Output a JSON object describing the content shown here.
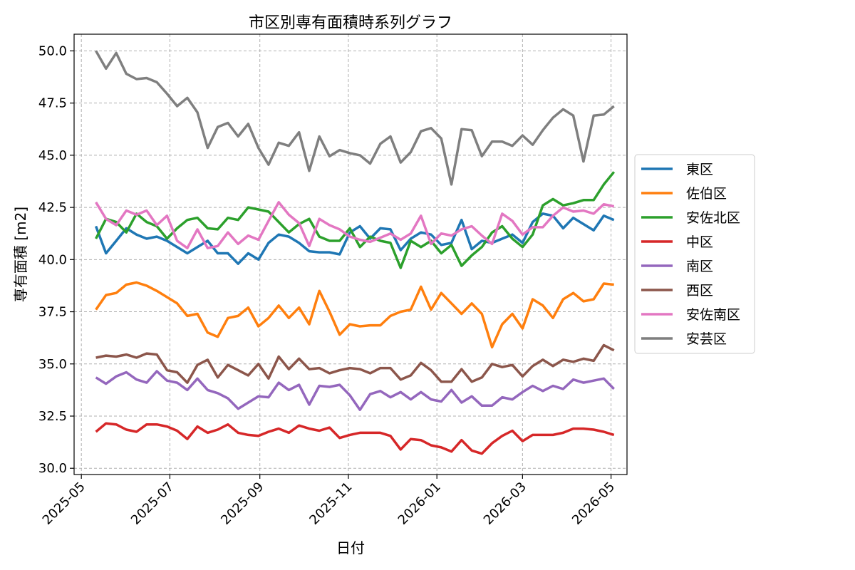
{
  "chart_data": {
    "type": "line",
    "title": "市区別専有面積時系列グラフ",
    "xlabel": "日付",
    "ylabel": "専有面積 [m2]",
    "ylim": [
      29.7,
      50.8
    ],
    "xlim": [
      "2025-04-26",
      "2026-05-12"
    ],
    "yticks": [
      30.0,
      32.5,
      35.0,
      37.5,
      40.0,
      42.5,
      45.0,
      47.5,
      50.0
    ],
    "ytick_labels": [
      "30.0",
      "32.5",
      "35.0",
      "37.5",
      "40.0",
      "42.5",
      "45.0",
      "47.5",
      "50.0"
    ],
    "xticks": [
      "2025-05-01",
      "2025-07-01",
      "2025-09-01",
      "2025-11-01",
      "2026-01-01",
      "2026-03-01",
      "2026-05-01"
    ],
    "xtick_labels": [
      "2025-05",
      "2025-07",
      "2025-09",
      "2025-11",
      "2026-01",
      "2026-03",
      "2026-05"
    ],
    "grid": true,
    "legend_position": "right-outside",
    "x": [
      "2025-05-11",
      "2025-05-18",
      "2025-05-25",
      "2025-06-01",
      "2025-06-08",
      "2025-06-15",
      "2025-06-22",
      "2025-06-29",
      "2025-07-06",
      "2025-07-13",
      "2025-07-20",
      "2025-07-27",
      "2025-08-03",
      "2025-08-10",
      "2025-08-17",
      "2025-08-24",
      "2025-08-31",
      "2025-09-07",
      "2025-09-14",
      "2025-09-21",
      "2025-09-28",
      "2025-10-05",
      "2025-10-12",
      "2025-10-19",
      "2025-10-26",
      "2025-11-02",
      "2025-11-09",
      "2025-11-16",
      "2025-11-23",
      "2025-11-30",
      "2025-12-07",
      "2025-12-14",
      "2025-12-21",
      "2025-12-28",
      "2026-01-04",
      "2026-01-11",
      "2026-01-18",
      "2026-01-25",
      "2026-02-01",
      "2026-02-08",
      "2026-02-15",
      "2026-02-22",
      "2026-03-01",
      "2026-03-08",
      "2026-03-15",
      "2026-03-22",
      "2026-03-29",
      "2026-04-05",
      "2026-04-12",
      "2026-04-19",
      "2026-04-26",
      "2026-05-03"
    ],
    "series": [
      {
        "name": "東区",
        "color": "#1f77b4",
        "values": [
          41.6,
          40.3,
          40.9,
          41.5,
          41.2,
          41.0,
          41.1,
          40.9,
          40.6,
          40.3,
          40.6,
          40.9,
          40.3,
          40.3,
          39.8,
          40.3,
          40.0,
          40.8,
          41.2,
          41.1,
          40.8,
          40.4,
          40.35,
          40.35,
          40.25,
          41.3,
          41.6,
          41.0,
          41.5,
          41.45,
          40.45,
          41.0,
          41.3,
          41.2,
          40.7,
          40.8,
          41.9,
          40.5,
          40.9,
          40.8,
          41.0,
          41.2,
          40.8,
          41.8,
          42.2,
          42.1,
          41.5,
          42.0,
          41.7,
          41.4,
          42.1,
          41.9
        ]
      },
      {
        "name": "佐伯区",
        "color": "#ff7f0e",
        "values": [
          37.6,
          38.3,
          38.4,
          38.8,
          38.9,
          38.75,
          38.5,
          38.2,
          37.9,
          37.3,
          37.4,
          36.5,
          36.3,
          37.2,
          37.3,
          37.7,
          36.8,
          37.2,
          37.8,
          37.2,
          37.7,
          36.9,
          38.5,
          37.5,
          36.4,
          36.9,
          36.8,
          36.85,
          36.85,
          37.3,
          37.5,
          37.6,
          38.7,
          37.6,
          38.4,
          37.9,
          37.4,
          37.9,
          37.4,
          35.8,
          36.9,
          37.4,
          36.7,
          38.1,
          37.8,
          37.2,
          38.1,
          38.4,
          38.0,
          38.1,
          38.85,
          38.8
        ]
      },
      {
        "name": "安佐北区",
        "color": "#2ca02c",
        "values": [
          41.0,
          41.95,
          41.8,
          41.3,
          42.2,
          41.8,
          41.6,
          41.0,
          41.5,
          41.9,
          42.0,
          41.5,
          41.45,
          42.0,
          41.9,
          42.5,
          42.4,
          42.3,
          41.8,
          41.3,
          41.7,
          41.95,
          41.1,
          40.9,
          40.9,
          41.5,
          40.6,
          41.1,
          40.9,
          40.8,
          39.6,
          40.9,
          40.6,
          40.9,
          40.3,
          40.7,
          39.7,
          40.2,
          40.6,
          41.3,
          41.6,
          41.0,
          40.6,
          41.2,
          42.6,
          42.9,
          42.6,
          42.7,
          42.85,
          42.85,
          43.6,
          44.2
        ]
      },
      {
        "name": "中区",
        "color": "#d62728",
        "values": [
          31.75,
          32.15,
          32.1,
          31.85,
          31.75,
          32.1,
          32.1,
          32.0,
          31.8,
          31.4,
          32.0,
          31.7,
          31.85,
          32.1,
          31.7,
          31.6,
          31.55,
          31.75,
          31.9,
          31.7,
          32.05,
          31.9,
          31.8,
          31.95,
          31.45,
          31.6,
          31.7,
          31.7,
          31.7,
          31.55,
          30.9,
          31.4,
          31.35,
          31.1,
          31.0,
          30.8,
          31.35,
          30.85,
          30.7,
          31.2,
          31.55,
          31.8,
          31.3,
          31.6,
          31.6,
          31.6,
          31.7,
          31.9,
          31.9,
          31.85,
          31.75,
          31.6
        ]
      },
      {
        "name": "南区",
        "color": "#9467bd",
        "values": [
          34.35,
          34.05,
          34.4,
          34.6,
          34.25,
          34.1,
          34.65,
          34.2,
          34.1,
          33.75,
          34.3,
          33.75,
          33.6,
          33.35,
          32.85,
          33.15,
          33.45,
          33.4,
          34.1,
          33.75,
          34.0,
          33.05,
          33.95,
          33.9,
          34.0,
          33.5,
          32.8,
          33.55,
          33.7,
          33.4,
          33.65,
          33.3,
          33.65,
          33.3,
          33.2,
          33.75,
          33.15,
          33.45,
          33.0,
          33.0,
          33.4,
          33.3,
          33.65,
          33.95,
          33.7,
          33.95,
          33.8,
          34.25,
          34.1,
          34.2,
          34.3,
          33.8
        ]
      },
      {
        "name": "西区",
        "color": "#8c564b",
        "values": [
          35.3,
          35.4,
          35.35,
          35.45,
          35.3,
          35.5,
          35.45,
          34.7,
          34.6,
          34.1,
          34.95,
          35.2,
          34.35,
          34.95,
          34.7,
          34.45,
          35.0,
          34.3,
          35.35,
          34.75,
          35.25,
          34.75,
          34.8,
          34.55,
          34.7,
          34.8,
          34.75,
          34.55,
          34.8,
          34.8,
          34.25,
          34.45,
          35.05,
          34.7,
          34.15,
          34.15,
          34.75,
          34.15,
          34.35,
          35.0,
          34.85,
          34.95,
          34.4,
          34.9,
          35.2,
          34.9,
          35.2,
          35.1,
          35.25,
          35.15,
          35.9,
          35.65
        ]
      },
      {
        "name": "安佐南区",
        "color": "#e377c2",
        "values": [
          42.75,
          41.95,
          41.65,
          42.35,
          42.15,
          42.35,
          41.65,
          42.1,
          40.9,
          40.55,
          41.45,
          40.55,
          40.65,
          41.3,
          40.75,
          41.15,
          40.95,
          41.85,
          42.75,
          42.15,
          41.75,
          40.65,
          41.95,
          41.65,
          41.45,
          41.1,
          40.95,
          40.85,
          41.05,
          41.25,
          40.95,
          41.25,
          42.1,
          40.75,
          41.25,
          41.15,
          41.45,
          41.6,
          41.15,
          40.75,
          42.2,
          41.85,
          41.2,
          41.55,
          41.55,
          42.1,
          42.5,
          42.3,
          42.35,
          42.2,
          42.65,
          42.55
        ]
      },
      {
        "name": "安芸区",
        "color": "#7f7f7f",
        "values": [
          50.0,
          49.15,
          49.9,
          48.9,
          48.65,
          48.7,
          48.5,
          47.95,
          47.35,
          47.75,
          47.05,
          45.35,
          46.35,
          46.55,
          45.9,
          46.5,
          45.35,
          44.55,
          45.6,
          45.45,
          46.1,
          44.25,
          45.9,
          44.95,
          45.25,
          45.1,
          45.0,
          44.6,
          45.55,
          45.9,
          44.65,
          45.15,
          46.15,
          46.3,
          45.8,
          43.6,
          46.25,
          46.2,
          44.95,
          45.65,
          45.65,
          45.45,
          45.95,
          45.5,
          46.2,
          46.8,
          47.2,
          46.9,
          44.7,
          46.9,
          46.95,
          47.35
        ]
      }
    ]
  }
}
